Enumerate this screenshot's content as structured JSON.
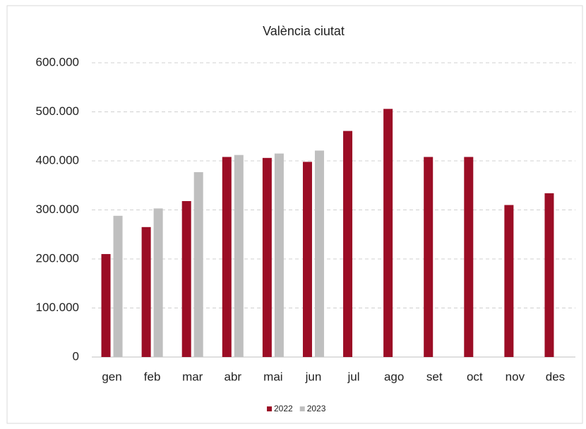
{
  "chart_data": {
    "type": "bar",
    "title": "València ciutat",
    "categories": [
      "gen",
      "feb",
      "mar",
      "abr",
      "mai",
      "jun",
      "jul",
      "ago",
      "set",
      "oct",
      "nov",
      "des"
    ],
    "series": [
      {
        "name": "2022",
        "color": "#9b0d25",
        "values": [
          210000,
          265000,
          318000,
          408000,
          406000,
          398000,
          461000,
          506000,
          408000,
          408000,
          310000,
          334000
        ]
      },
      {
        "name": "2023",
        "color": "#bfbfbf",
        "values": [
          288000,
          303000,
          377000,
          412000,
          415000,
          421000,
          null,
          null,
          null,
          null,
          null,
          null
        ]
      }
    ],
    "ylim": [
      0,
      600000
    ],
    "yticks": [
      0,
      {
        "value": 100000,
        "label": "100.000"
      },
      {
        "value": 200000,
        "label": "200.000"
      },
      {
        "value": 300000,
        "label": "300.000"
      },
      {
        "value": 400000,
        "label": "400.000"
      },
      {
        "value": 500000,
        "label": "500.000"
      },
      {
        "value": 600000,
        "label": "600.000"
      }
    ],
    "grid": true,
    "legend": "bottom"
  }
}
